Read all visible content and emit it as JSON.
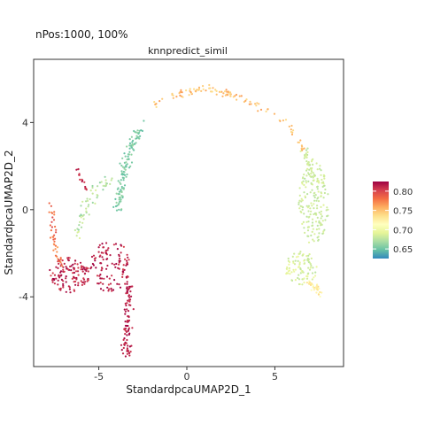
{
  "chart_data": {
    "type": "scatter",
    "subtitle": "nPos:1000, 100%",
    "title": "knnpredict_simil",
    "xlabel": "StandardpcaUMAP2D_1",
    "ylabel": "StandardpcaUMAP2D_2",
    "xlim": [
      -8.7,
      8.9
    ],
    "ylim": [
      -7.2,
      6.9
    ],
    "x_ticks": [
      {
        "value": -5,
        "label": "-5"
      },
      {
        "value": 0,
        "label": "0"
      },
      {
        "value": 5,
        "label": "5"
      }
    ],
    "y_ticks": [
      {
        "value": -4,
        "label": "-4"
      },
      {
        "value": 0,
        "label": "0"
      },
      {
        "value": 4,
        "label": "4"
      }
    ],
    "grid": false,
    "n_points": 1000,
    "color_variable": "knnpredict_simil",
    "colorbar": {
      "placement": "right",
      "range": [
        0.625,
        0.825
      ],
      "ticks": [
        {
          "value": 0.8,
          "label": "0.80"
        },
        {
          "value": 0.75,
          "label": "0.75"
        },
        {
          "value": 0.7,
          "label": "0.70"
        },
        {
          "value": 0.65,
          "label": "0.65"
        }
      ],
      "colormap_stops": [
        "#3288bd",
        "#66c2a5",
        "#abdda4",
        "#e6f598",
        "#ffffbf",
        "#fee08b",
        "#fdae61",
        "#f46d43",
        "#d53e4f",
        "#9e0142"
      ]
    },
    "clusters": [
      {
        "region": "upper arc",
        "path": [
          [
            -2.0,
            4.8
          ],
          [
            -1.0,
            5.2
          ],
          [
            0.0,
            5.4
          ],
          [
            1.0,
            5.5
          ],
          [
            2.0,
            5.4
          ],
          [
            3.0,
            5.2
          ],
          [
            4.0,
            4.8
          ],
          [
            5.0,
            4.3
          ],
          [
            6.0,
            3.6
          ],
          [
            6.6,
            2.8
          ]
        ],
        "spread": 0.18,
        "count": 110,
        "value_range": [
          0.735,
          0.765
        ]
      },
      {
        "region": "left arm",
        "path": [
          [
            -2.5,
            4.0
          ],
          [
            -3.0,
            3.2
          ],
          [
            -3.4,
            2.4
          ],
          [
            -3.6,
            1.6
          ],
          [
            -3.8,
            0.8
          ],
          [
            -3.9,
            0.0
          ]
        ],
        "spread": 0.22,
        "count": 120,
        "value_range": [
          0.645,
          0.665
        ]
      },
      {
        "region": "left band",
        "path": [
          [
            -4.0,
            1.5
          ],
          [
            -5.0,
            1.0
          ],
          [
            -5.5,
            0.5
          ],
          [
            -6.0,
            -0.4
          ],
          [
            -6.3,
            -1.3
          ]
        ],
        "spread": 0.25,
        "count": 55,
        "value_range": [
          0.66,
          0.69
        ]
      },
      {
        "region": "upper-left tail",
        "path": [
          [
            -6.3,
            2.0
          ],
          [
            -6.0,
            1.4
          ],
          [
            -5.6,
            0.8
          ]
        ],
        "spread": 0.12,
        "count": 15,
        "value_range": [
          0.8,
          0.82
        ]
      },
      {
        "region": "lower-left lobe",
        "center": [
          -6.7,
          -3.0
        ],
        "radii": [
          1.2,
          0.8
        ],
        "count": 120,
        "value_range": [
          0.8,
          0.825
        ]
      },
      {
        "region": "left edge strip",
        "path": [
          [
            -7.7,
            0.3
          ],
          [
            -7.6,
            -0.8
          ],
          [
            -7.5,
            -1.8
          ],
          [
            -7.2,
            -2.5
          ]
        ],
        "spread": 0.15,
        "count": 40,
        "value_range": [
          0.76,
          0.8
        ]
      },
      {
        "region": "lower-middle cluster",
        "center": [
          -4.3,
          -2.6
        ],
        "radii": [
          1.2,
          1.2
        ],
        "count": 110,
        "value_range": [
          0.8,
          0.825
        ]
      },
      {
        "region": "downward stem",
        "path": [
          [
            -3.2,
            -3.2
          ],
          [
            -3.3,
            -4.2
          ],
          [
            -3.4,
            -5.2
          ],
          [
            -3.5,
            -6.0
          ],
          [
            -3.4,
            -6.6
          ]
        ],
        "spread": 0.2,
        "count": 90,
        "value_range": [
          0.805,
          0.825
        ]
      },
      {
        "region": "right-upper arm",
        "path": [
          [
            6.6,
            2.8
          ],
          [
            7.0,
            2.0
          ],
          [
            7.2,
            1.2
          ]
        ],
        "spread": 0.25,
        "count": 40,
        "value_range": [
          0.67,
          0.69
        ]
      },
      {
        "region": "right main cluster",
        "center": [
          7.2,
          0.3
        ],
        "radii": [
          0.85,
          1.9
        ],
        "count": 170,
        "value_range": [
          0.675,
          0.69
        ]
      },
      {
        "region": "right lower cluster",
        "center": [
          6.5,
          -2.7
        ],
        "radii": [
          0.9,
          0.8
        ],
        "count": 90,
        "value_range": [
          0.675,
          0.7
        ]
      },
      {
        "region": "right bottom tip",
        "path": [
          [
            6.8,
            -3.2
          ],
          [
            7.2,
            -3.5
          ],
          [
            7.5,
            -3.8
          ]
        ],
        "spread": 0.15,
        "count": 40,
        "value_range": [
          0.71,
          0.74
        ]
      }
    ]
  }
}
